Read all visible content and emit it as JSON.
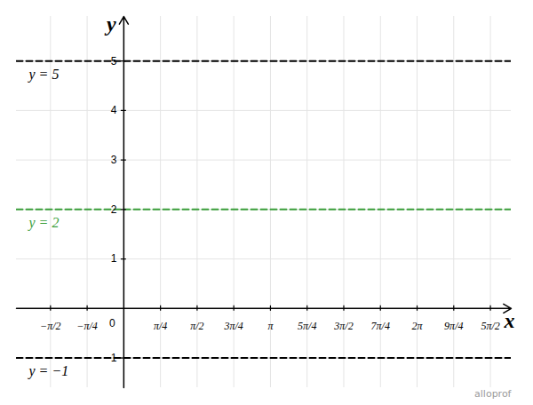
{
  "chart_data": {
    "type": "line",
    "xlabel": "x",
    "ylabel": "y",
    "credit": "alloprof",
    "xlim": [
      -2.3,
      8.3
    ],
    "ylim": [
      -1.6,
      5.9
    ],
    "xticks": [
      {
        "value": -1.570796,
        "label": "−π/2"
      },
      {
        "value": -0.785398,
        "label": "−π/4"
      },
      0,
      {
        "value": 0.785398,
        "label": "π/4"
      },
      {
        "value": 1.570796,
        "label": "π/2"
      },
      {
        "value": 2.356194,
        "label": "3π/4"
      },
      {
        "value": 3.141593,
        "label": "π"
      },
      {
        "value": 3.926991,
        "label": "5π/4"
      },
      {
        "value": 4.712389,
        "label": "3π/2"
      },
      {
        "value": 5.497787,
        "label": "7π/4"
      },
      {
        "value": 6.283185,
        "label": "2π"
      },
      {
        "value": 7.068583,
        "label": "9π/4"
      },
      {
        "value": 7.853982,
        "label": "5π/2"
      }
    ],
    "yticks": [
      {
        "value": -1,
        "label": "−1"
      },
      1,
      2,
      3,
      4,
      5
    ],
    "grid": true,
    "x": [
      -2.3,
      8.3
    ],
    "series": [
      {
        "name": "y = 5",
        "color": "#000000",
        "line_style": "dashed",
        "values": [
          5,
          5
        ]
      },
      {
        "name": "y = 2",
        "color": "#3a9e3a",
        "line_style": "dashed",
        "values": [
          2,
          2
        ]
      },
      {
        "name": "y = −1",
        "color": "#000000",
        "line_style": "dashed",
        "values": [
          -1,
          -1
        ]
      }
    ]
  }
}
